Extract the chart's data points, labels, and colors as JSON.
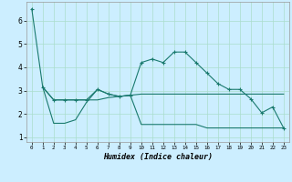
{
  "title": "",
  "xlabel": "Humidex (Indice chaleur)",
  "background_color": "#cceeff",
  "grid_color": "#aaddcc",
  "line_color": "#1a7a6e",
  "xlim": [
    -0.5,
    23.5
  ],
  "ylim": [
    0.8,
    6.8
  ],
  "yticks": [
    1,
    2,
    3,
    4,
    5,
    6
  ],
  "xticks": [
    0,
    1,
    2,
    3,
    4,
    5,
    6,
    7,
    8,
    9,
    10,
    11,
    12,
    13,
    14,
    15,
    16,
    17,
    18,
    19,
    20,
    21,
    22,
    23
  ],
  "line1_x": [
    1,
    2,
    3,
    4,
    5,
    6,
    7,
    8,
    9,
    10,
    11,
    12,
    13,
    14,
    15,
    16,
    17,
    18,
    19,
    20,
    21,
    22,
    23
  ],
  "line1_y": [
    3.15,
    2.6,
    2.6,
    2.6,
    2.6,
    2.6,
    2.7,
    2.75,
    2.8,
    2.85,
    2.85,
    2.85,
    2.85,
    2.85,
    2.85,
    2.85,
    2.85,
    2.85,
    2.85,
    2.85,
    2.85,
    2.85,
    2.85
  ],
  "line2_x": [
    0,
    1,
    2,
    3,
    4,
    5,
    6,
    7,
    8,
    9,
    10,
    11,
    12,
    13,
    14,
    15,
    16,
    17,
    18,
    19,
    20,
    21,
    22,
    23
  ],
  "line2_y": [
    6.5,
    3.15,
    2.6,
    2.6,
    2.6,
    2.6,
    3.05,
    2.85,
    2.75,
    2.8,
    4.2,
    4.35,
    4.2,
    4.65,
    4.65,
    4.2,
    3.75,
    3.3,
    3.05,
    3.05,
    2.65,
    2.05,
    2.3,
    1.4
  ],
  "line3_x": [
    1,
    2,
    3,
    4,
    5,
    6,
    7,
    8,
    9,
    10,
    11,
    12,
    13,
    14,
    15,
    16,
    17,
    18,
    19,
    20,
    21,
    22,
    23
  ],
  "line3_y": [
    3.15,
    1.6,
    1.6,
    1.75,
    2.5,
    3.05,
    2.85,
    2.75,
    2.8,
    1.55,
    1.55,
    1.55,
    1.55,
    1.55,
    1.55,
    1.4,
    1.4,
    1.4,
    1.4,
    1.4,
    1.4,
    1.4,
    1.4
  ]
}
